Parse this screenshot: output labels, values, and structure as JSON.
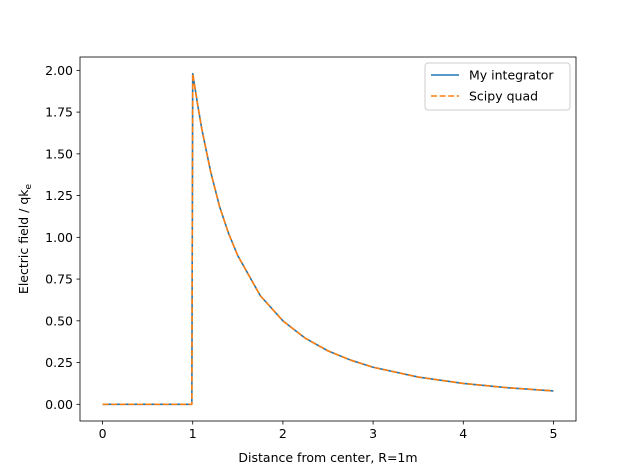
{
  "chart_data": {
    "type": "line",
    "xlabel": "Distance from center, R=1m",
    "ylabel": "Electric field / qk",
    "ylabel_subscript": "e",
    "xlim": [
      -0.25,
      5.25
    ],
    "ylim": [
      -0.1,
      2.08
    ],
    "xticks": [
      0,
      1,
      2,
      3,
      4,
      5
    ],
    "yticks": [
      0.0,
      0.25,
      0.5,
      0.75,
      1.0,
      1.25,
      1.5,
      1.75,
      2.0
    ],
    "ytick_labels": [
      "0.00",
      "0.25",
      "0.50",
      "0.75",
      "1.00",
      "1.25",
      "1.50",
      "1.75",
      "2.00"
    ],
    "grid": false,
    "legend_position": "top-right",
    "series": [
      {
        "name": "My integrator",
        "color": "#1f77b4",
        "style": "solid",
        "x": [
          0,
          0.5,
          0.99,
          1.0,
          1.05,
          1.1,
          1.2,
          1.3,
          1.4,
          1.5,
          1.75,
          2.0,
          2.25,
          2.5,
          2.75,
          3.0,
          3.5,
          4.0,
          4.5,
          5.0
        ],
        "y": [
          0,
          0,
          0,
          1.98,
          1.81,
          1.65,
          1.39,
          1.18,
          1.02,
          0.89,
          0.65,
          0.5,
          0.395,
          0.32,
          0.265,
          0.222,
          0.163,
          0.125,
          0.099,
          0.08
        ]
      },
      {
        "name": "Scipy quad",
        "color": "#ff7f0e",
        "style": "dashed",
        "x": [
          0,
          0.5,
          0.99,
          1.0,
          1.05,
          1.1,
          1.2,
          1.3,
          1.4,
          1.5,
          1.75,
          2.0,
          2.25,
          2.5,
          2.75,
          3.0,
          3.5,
          4.0,
          4.5,
          5.0
        ],
        "y": [
          0,
          0,
          0,
          1.98,
          1.81,
          1.65,
          1.39,
          1.18,
          1.02,
          0.89,
          0.65,
          0.5,
          0.395,
          0.32,
          0.265,
          0.222,
          0.163,
          0.125,
          0.099,
          0.08
        ]
      }
    ]
  }
}
